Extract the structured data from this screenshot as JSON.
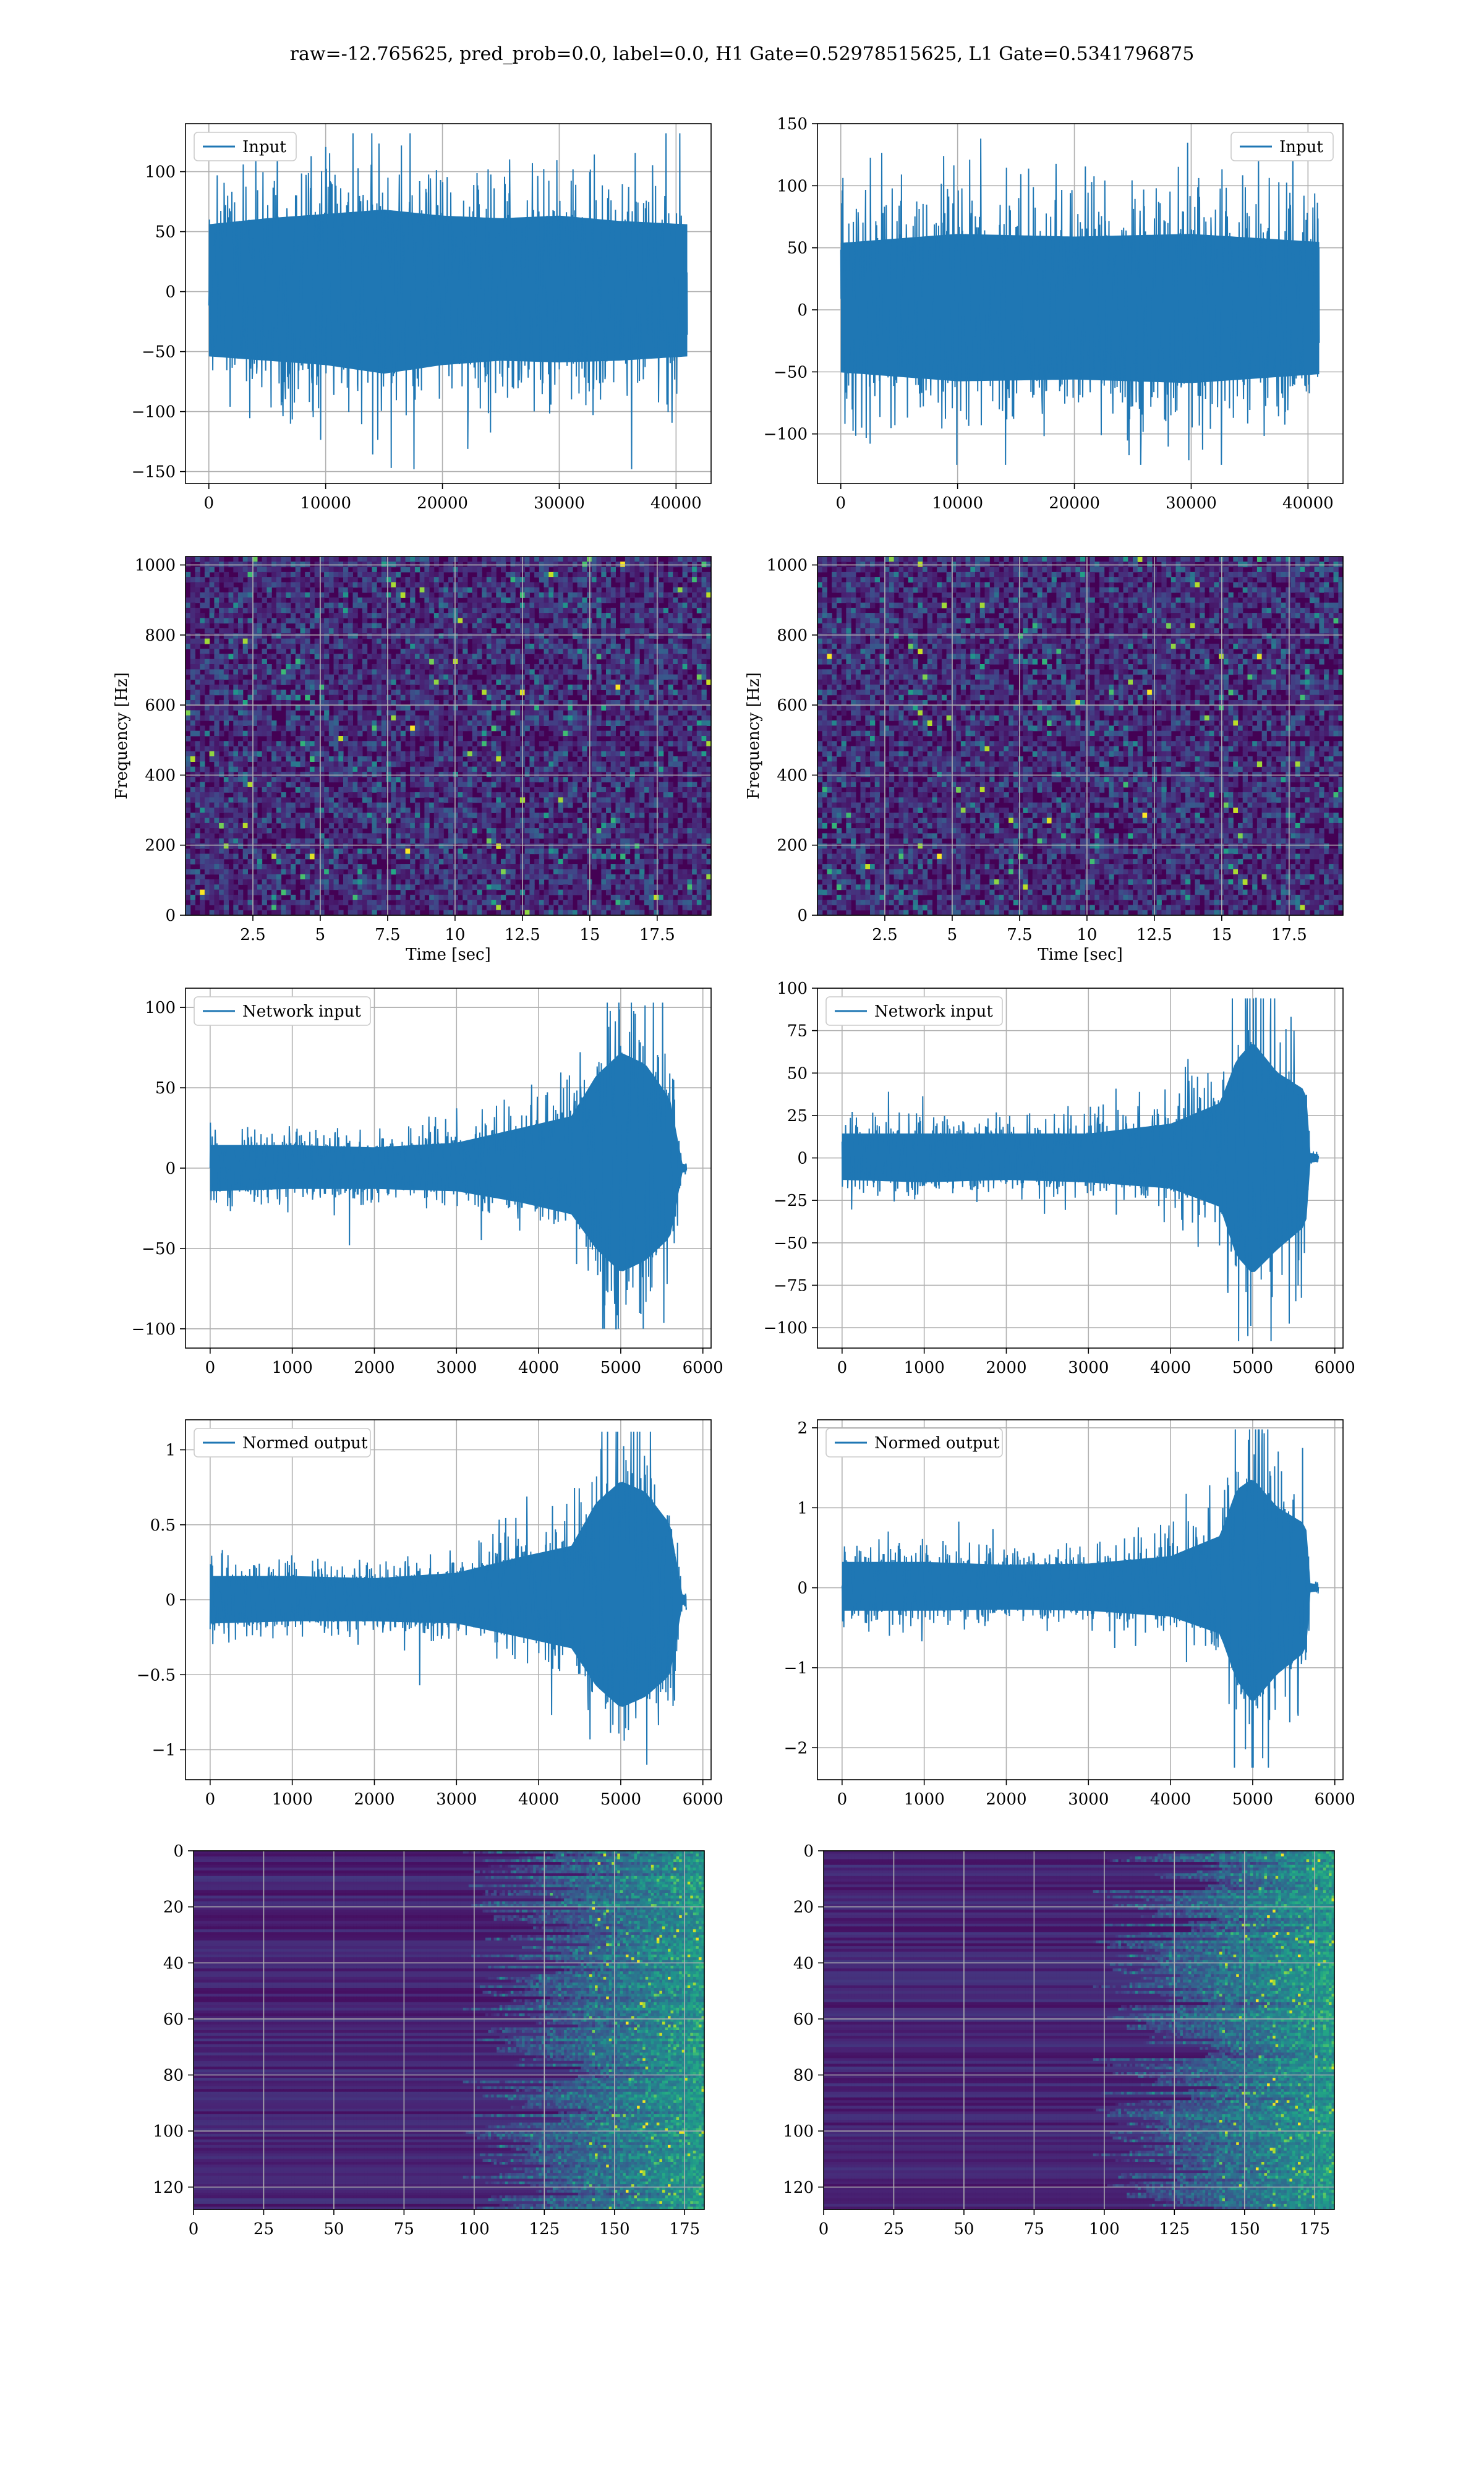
{
  "suptitle": "raw=-12.765625, pred_prob=0.0, label=0.0, H1 Gate=0.52978515625, L1 Gate=0.5341796875",
  "colors": {
    "line": "#1f77b4",
    "grid": "#b0b0b0",
    "axes": "#000000",
    "viridis_dark": "#440154"
  },
  "chart_data": [
    {
      "id": "h1-input",
      "type": "line",
      "xlim": [
        -2000,
        43000
      ],
      "ylim": [
        -160,
        140
      ],
      "xticks": [
        0,
        10000,
        20000,
        30000,
        40000
      ],
      "yticks": [
        -150,
        -100,
        -50,
        0,
        50,
        100
      ],
      "legend": {
        "label": "Input",
        "loc": "upper left"
      },
      "series": [
        {
          "x_range": [
            0,
            40960
          ],
          "envelope": [
            [
              0,
              -75,
              78
            ],
            [
              5000,
              -80,
              85
            ],
            [
              10000,
              -85,
              90
            ],
            [
              15000,
              -95,
              95
            ],
            [
              20000,
              -85,
              88
            ],
            [
              25000,
              -80,
              85
            ],
            [
              30000,
              -82,
              88
            ],
            [
              35000,
              -80,
              82
            ],
            [
              40960,
              -75,
              78
            ]
          ],
          "extremes": [
            -148,
            132
          ]
        }
      ],
      "grid": true
    },
    {
      "id": "l1-input",
      "type": "line",
      "xlim": [
        -2000,
        43000
      ],
      "ylim": [
        -140,
        150
      ],
      "xticks": [
        0,
        10000,
        20000,
        30000,
        40000
      ],
      "yticks": [
        -100,
        -50,
        0,
        50,
        100,
        150
      ],
      "legend": {
        "label": "Input",
        "loc": "upper right"
      },
      "series": [
        {
          "x_range": [
            0,
            40960
          ],
          "envelope": [
            [
              0,
              -70,
              75
            ],
            [
              10000,
              -80,
              85
            ],
            [
              20000,
              -78,
              82
            ],
            [
              30000,
              -82,
              85
            ],
            [
              40960,
              -72,
              76
            ]
          ],
          "extremes": [
            -125,
            138
          ]
        }
      ],
      "grid": true
    },
    {
      "id": "h1-spectrogram",
      "type": "heatmap",
      "colormap": "viridis",
      "xlim": [
        0,
        19.5
      ],
      "ylim": [
        0,
        1024
      ],
      "xticks": [
        2.5,
        5.0,
        7.5,
        10.0,
        12.5,
        15.0,
        17.5
      ],
      "yticks": [
        0,
        200,
        400,
        600,
        800,
        1000
      ],
      "xlabel": "Time [sec]",
      "ylabel": "Frequency [Hz]",
      "grid": true
    },
    {
      "id": "l1-spectrogram",
      "type": "heatmap",
      "colormap": "viridis",
      "xlim": [
        0,
        19.5
      ],
      "ylim": [
        0,
        1024
      ],
      "xticks": [
        2.5,
        5.0,
        7.5,
        10.0,
        12.5,
        15.0,
        17.5
      ],
      "yticks": [
        0,
        200,
        400,
        600,
        800,
        1000
      ],
      "xlabel": "Time [sec]",
      "ylabel": "Frequency [Hz]",
      "grid": true
    },
    {
      "id": "h1-network-input",
      "type": "line",
      "xlim": [
        -300,
        6100
      ],
      "ylim": [
        -112,
        112
      ],
      "xticks": [
        0,
        1000,
        2000,
        3000,
        4000,
        5000,
        6000
      ],
      "yticks": [
        -100,
        -50,
        0,
        50,
        100
      ],
      "legend": {
        "label": "Network input",
        "loc": "upper left"
      },
      "series": [
        {
          "x_range": [
            0,
            5800
          ],
          "envelope": [
            [
              0,
              -20,
              20
            ],
            [
              1000,
              -18,
              20
            ],
            [
              2000,
              -18,
              18
            ],
            [
              3000,
              -20,
              22
            ],
            [
              3800,
              -30,
              35
            ],
            [
              4400,
              -40,
              45
            ],
            [
              4700,
              -70,
              80
            ],
            [
              5000,
              -90,
              100
            ],
            [
              5300,
              -80,
              90
            ],
            [
              5600,
              -60,
              60
            ],
            [
              5750,
              -4,
              4
            ],
            [
              5800,
              -3,
              3
            ]
          ],
          "extremes": [
            -100,
            103
          ]
        }
      ],
      "grid": true
    },
    {
      "id": "l1-network-input",
      "type": "line",
      "xlim": [
        -300,
        6100
      ],
      "ylim": [
        -112,
        100
      ],
      "xticks": [
        0,
        1000,
        2000,
        3000,
        4000,
        5000,
        6000
      ],
      "yticks": [
        -100,
        -75,
        -50,
        -25,
        0,
        25,
        50,
        75,
        100
      ],
      "legend": {
        "label": "Network input",
        "loc": "upper left"
      },
      "series": [
        {
          "x_range": [
            0,
            5800
          ],
          "envelope": [
            [
              0,
              -18,
              20
            ],
            [
              1000,
              -20,
              20
            ],
            [
              2000,
              -18,
              20
            ],
            [
              3000,
              -20,
              20
            ],
            [
              4000,
              -25,
              28
            ],
            [
              4600,
              -40,
              45
            ],
            [
              4800,
              -80,
              80
            ],
            [
              5000,
              -95,
              95
            ],
            [
              5300,
              -75,
              70
            ],
            [
              5650,
              -55,
              55
            ],
            [
              5700,
              -4,
              4
            ],
            [
              5800,
              -3,
              3
            ]
          ],
          "extremes": [
            -108,
            94
          ]
        }
      ],
      "grid": true
    },
    {
      "id": "h1-normed-output",
      "type": "line",
      "xlim": [
        -300,
        6100
      ],
      "ylim": [
        -1.2,
        1.2
      ],
      "xticks": [
        0,
        1000,
        2000,
        3000,
        4000,
        5000,
        6000
      ],
      "yticks": [
        -1.0,
        -0.5,
        0.0,
        0.5,
        1.0
      ],
      "legend": {
        "label": "Normed output",
        "loc": "upper left"
      },
      "series": [
        {
          "x_range": [
            0,
            5800
          ],
          "envelope": [
            [
              0,
              -0.22,
              0.22
            ],
            [
              1000,
              -0.2,
              0.22
            ],
            [
              2000,
              -0.2,
              0.2
            ],
            [
              3000,
              -0.22,
              0.25
            ],
            [
              3800,
              -0.35,
              0.4
            ],
            [
              4400,
              -0.45,
              0.5
            ],
            [
              4700,
              -0.8,
              0.9
            ],
            [
              5000,
              -1.0,
              1.1
            ],
            [
              5300,
              -0.9,
              1.0
            ],
            [
              5600,
              -0.7,
              0.7
            ],
            [
              5750,
              -0.05,
              0.05
            ],
            [
              5800,
              -0.04,
              0.04
            ]
          ],
          "extremes": [
            -1.1,
            1.12
          ]
        }
      ],
      "grid": true
    },
    {
      "id": "l1-normed-output",
      "type": "line",
      "xlim": [
        -300,
        6100
      ],
      "ylim": [
        -2.4,
        2.1
      ],
      "xticks": [
        0,
        1000,
        2000,
        3000,
        4000,
        5000,
        6000
      ],
      "yticks": [
        -2,
        -1,
        0,
        1,
        2
      ],
      "legend": {
        "label": "Normed output",
        "loc": "upper left"
      },
      "series": [
        {
          "x_range": [
            0,
            5800
          ],
          "envelope": [
            [
              0,
              -0.4,
              0.45
            ],
            [
              1000,
              -0.4,
              0.45
            ],
            [
              2000,
              -0.38,
              0.4
            ],
            [
              3000,
              -0.4,
              0.42
            ],
            [
              4000,
              -0.5,
              0.55
            ],
            [
              4600,
              -0.8,
              0.9
            ],
            [
              4800,
              -1.6,
              1.7
            ],
            [
              5000,
              -2.0,
              1.9
            ],
            [
              5300,
              -1.5,
              1.4
            ],
            [
              5650,
              -1.1,
              1.1
            ],
            [
              5700,
              -0.08,
              0.08
            ],
            [
              5800,
              -0.06,
              0.06
            ]
          ],
          "extremes": [
            -2.25,
            1.98
          ]
        }
      ],
      "grid": true
    },
    {
      "id": "h1-features",
      "type": "heatmap",
      "colormap": "viridis",
      "xlim": [
        0,
        182
      ],
      "ylim": [
        128,
        0
      ],
      "xticks": [
        0,
        25,
        50,
        75,
        100,
        125,
        150,
        175
      ],
      "yticks": [
        0,
        20,
        40,
        60,
        80,
        100,
        120
      ],
      "grid": true
    },
    {
      "id": "l1-features",
      "type": "heatmap",
      "colormap": "viridis",
      "xlim": [
        0,
        182
      ],
      "ylim": [
        128,
        0
      ],
      "xticks": [
        0,
        25,
        50,
        75,
        100,
        125,
        150,
        175
      ],
      "yticks": [
        0,
        20,
        40,
        60,
        80,
        100,
        120
      ],
      "grid": true
    }
  ]
}
